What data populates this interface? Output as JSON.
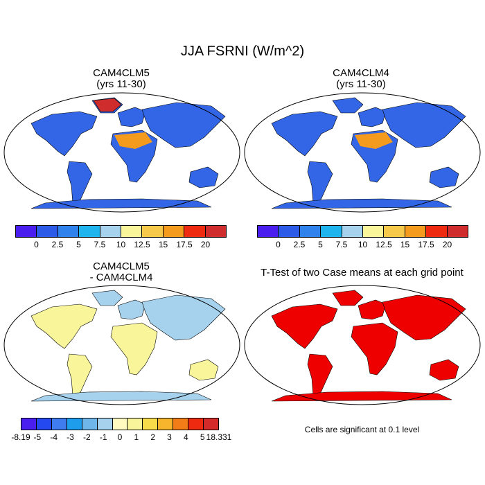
{
  "title": "JJA FSRNI (W/m^2)",
  "panels": {
    "top_left": {
      "title_line1": "CAM4CLM5",
      "title_line2": "(yrs 11-30)"
    },
    "top_right": {
      "title_line1": "CAM4CLM4",
      "title_line2": "(yrs 11-30)"
    },
    "bottom_left": {
      "title_line1": "CAM4CLM5",
      "title_line2": "- CAM4CLM4"
    },
    "bottom_right": {
      "title_line1": "T-Test of two Case means at each grid point",
      "note": "Cells are significant at 0.1 level"
    }
  },
  "colorbar_abs": {
    "colors": [
      "#4b1ef0",
      "#2d5ae6",
      "#2f82ec",
      "#1fb4ee",
      "#a6d2ee",
      "#f8f59a",
      "#f7c94a",
      "#f49b1e",
      "#ee2a10",
      "#cf2d2d"
    ],
    "labels": [
      "0",
      "2.5",
      "5",
      "7.5",
      "10",
      "12.5",
      "15",
      "17.5",
      "20"
    ]
  },
  "colorbar_diff": {
    "colors": [
      "#4b1ef0",
      "#2449f0",
      "#3f7cf0",
      "#1f9ded",
      "#6fb6ea",
      "#a6d2ee",
      "#fffbc0",
      "#f8f59a",
      "#f9dc4a",
      "#f7b42d",
      "#f27d18",
      "#ee2a10",
      "#d42a2a"
    ],
    "labels": [
      "-8.19",
      "-5",
      "-4",
      "-3",
      "-2",
      "-1",
      "0",
      "1",
      "2",
      "3",
      "4",
      "5",
      "18.331"
    ]
  },
  "map_colors": {
    "ocean": "#ffffff",
    "land_base": "#3366e6",
    "sig": "#ee0000",
    "diff_base": "#f8f59a",
    "diff_alt": "#a6d2ee"
  }
}
